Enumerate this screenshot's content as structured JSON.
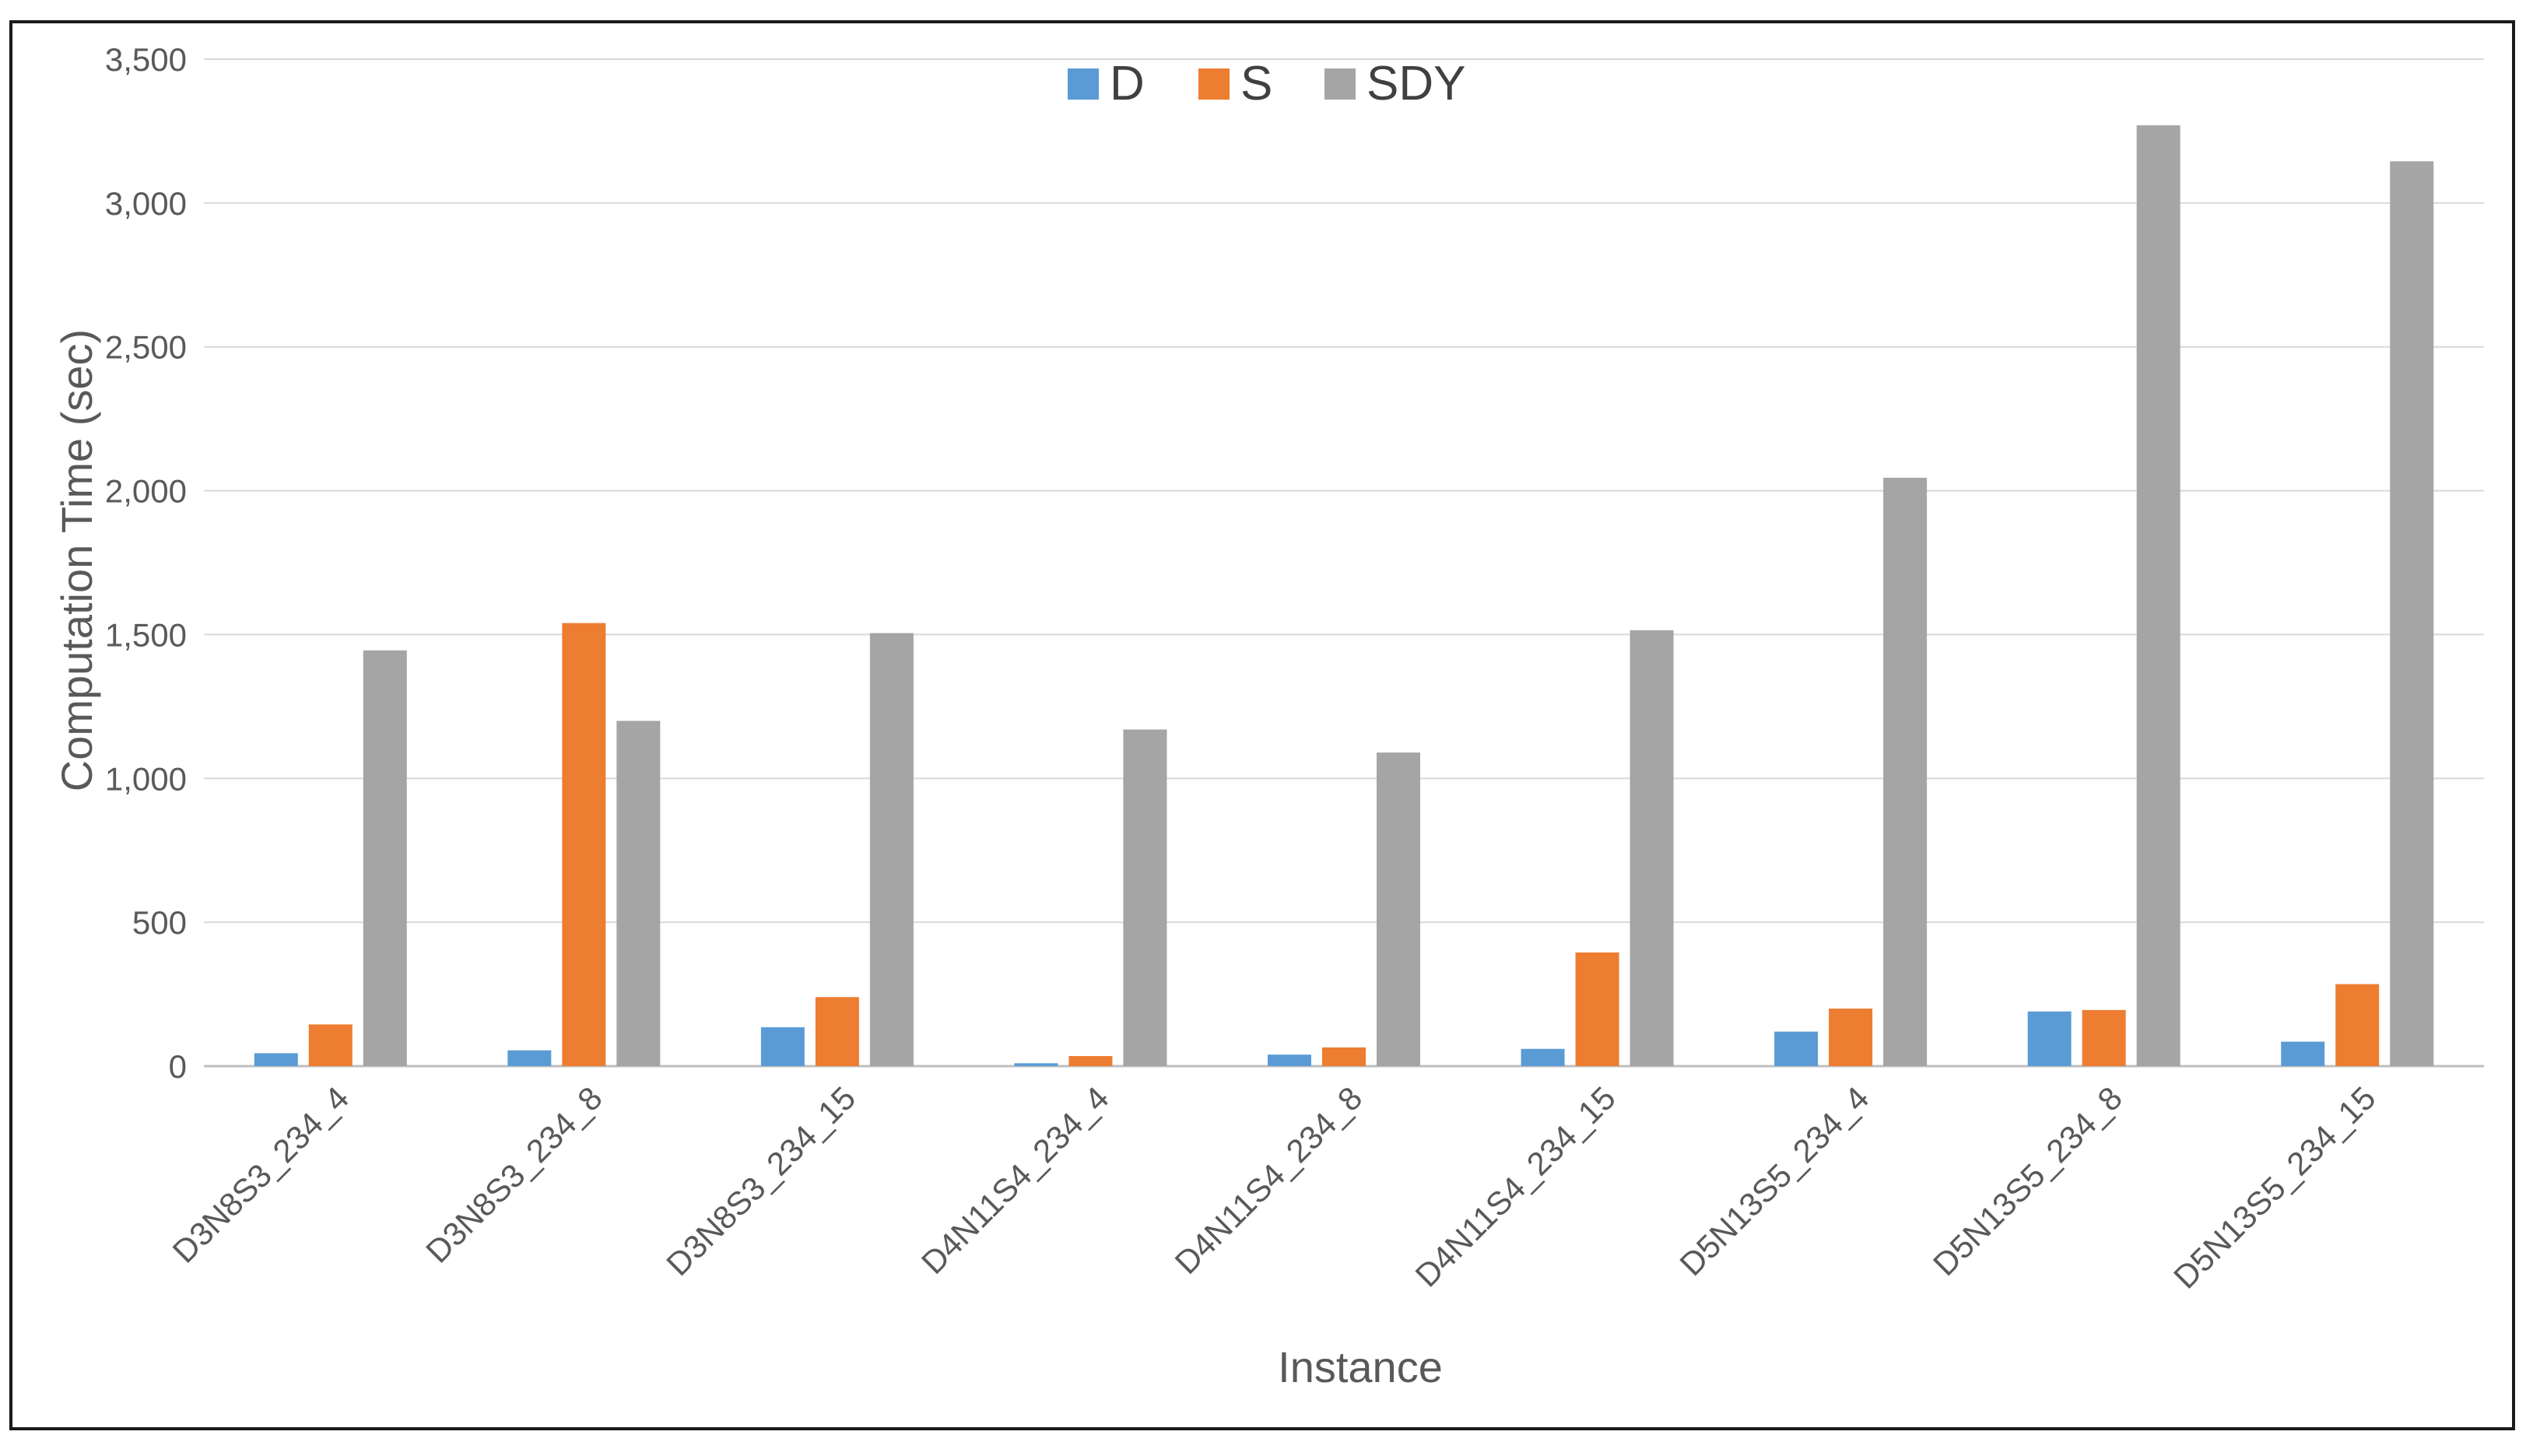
{
  "chart_data": {
    "type": "bar",
    "title": "",
    "xlabel": "Instance",
    "ylabel": "Computation Time (sec)",
    "ylim": [
      0,
      3500
    ],
    "yticks": [
      0,
      500,
      1000,
      1500,
      2000,
      2500,
      3000,
      3500
    ],
    "ytick_labels": [
      "0",
      "500",
      "1,000",
      "1,500",
      "2,000",
      "2,500",
      "3,000",
      "3,500"
    ],
    "grid": true,
    "legend_position": "top-center",
    "categories": [
      "D3N8S3_234_4",
      "D3N8S3_234_8",
      "D3N8S3_234_15",
      "D4N11S4_234_4",
      "D4N11S4_234_8",
      "D4N11S4_234_15",
      "D5N13S5_234_4",
      "D5N13S5_234_8",
      "D5N13S5_234_15"
    ],
    "series": [
      {
        "name": "D",
        "color": "#5b9bd5",
        "values": [
          45,
          55,
          135,
          10,
          40,
          60,
          120,
          190,
          85
        ]
      },
      {
        "name": "S",
        "color": "#ed7d31",
        "values": [
          145,
          1540,
          240,
          35,
          65,
          395,
          200,
          195,
          285
        ]
      },
      {
        "name": "SDY",
        "color": "#a5a5a5",
        "values": [
          1445,
          1200,
          1505,
          1170,
          1090,
          1515,
          2045,
          3270,
          3145
        ]
      }
    ]
  }
}
